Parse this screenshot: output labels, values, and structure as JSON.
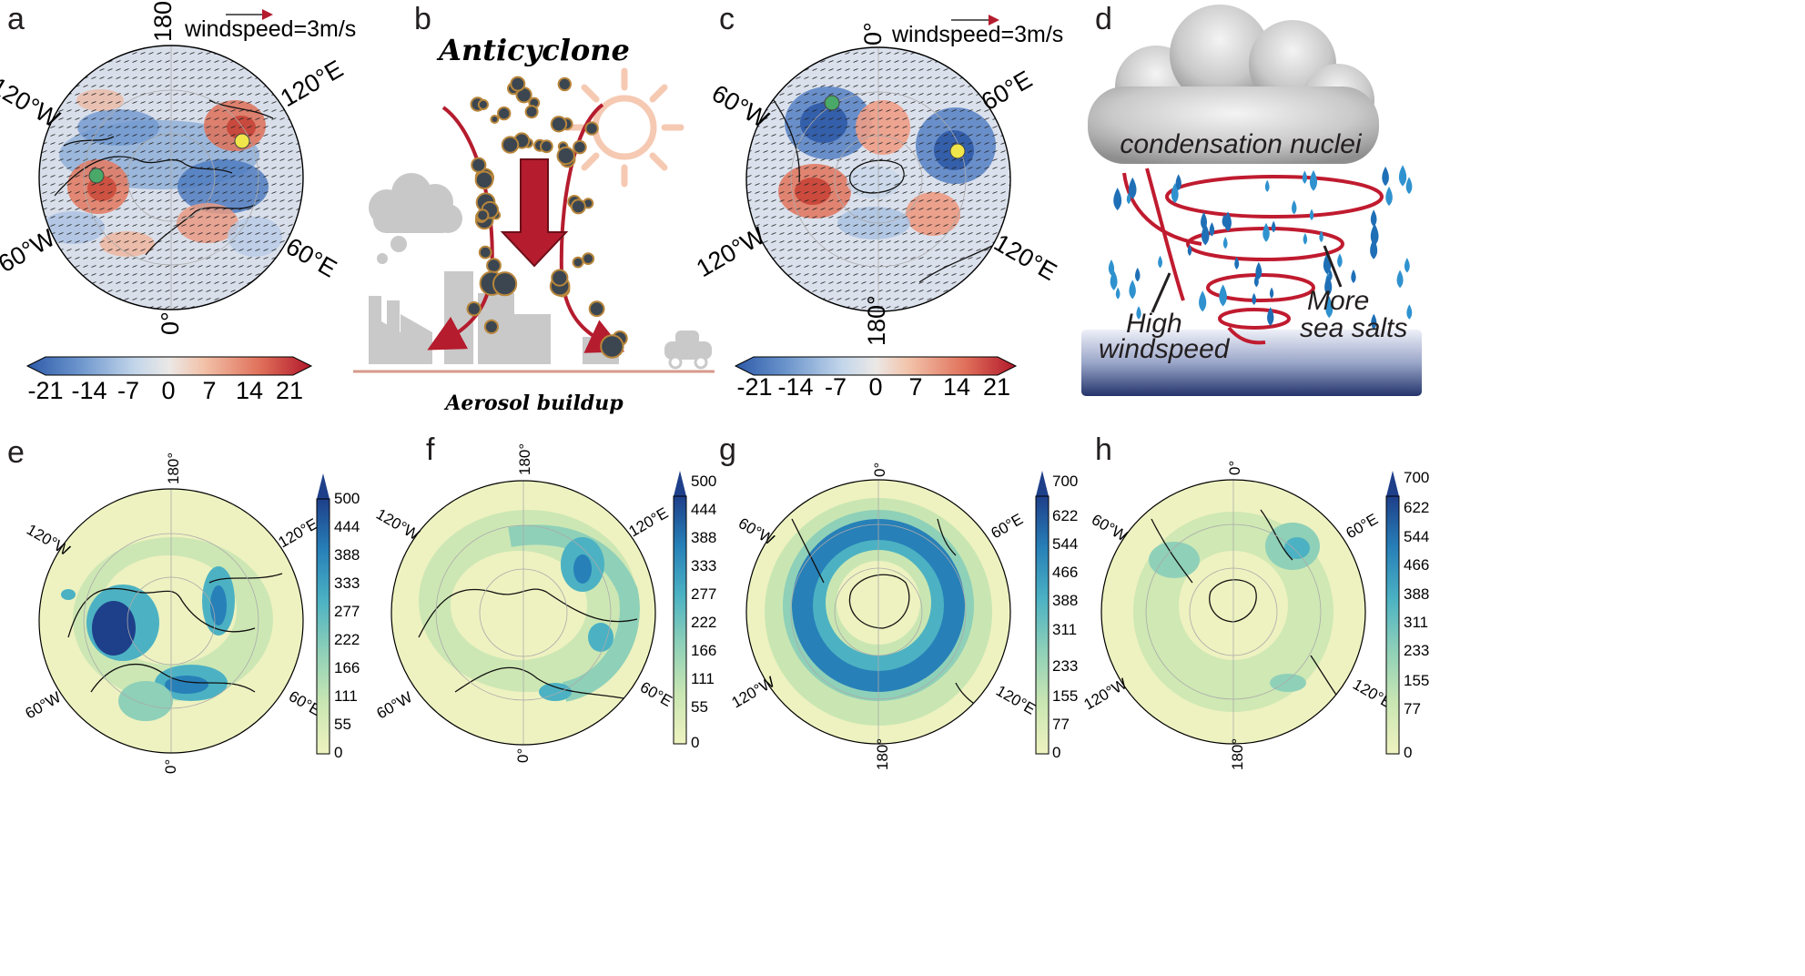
{
  "panels": {
    "a": {
      "label": "a",
      "windspeed": "windspeed=3m/s",
      "lon_top": "180°",
      "lon_bottom": "0°",
      "lon_ul": "120°W",
      "lon_ur": "120°E",
      "lon_ll": "60°W",
      "lon_lr": "60°E"
    },
    "b": {
      "label": "b",
      "title": "Anticyclone",
      "caption": "Aerosol buildup"
    },
    "c": {
      "label": "c",
      "windspeed": "windspeed=3m/s",
      "lon_top": "0°",
      "lon_bottom": "180°",
      "lon_ul": "60°W",
      "lon_ur": "60°E",
      "lon_ll": "120°W",
      "lon_lr": "120°E"
    },
    "d": {
      "label": "d",
      "cloud_text": "condensation nuclei",
      "high1": "High",
      "high2": "windspeed",
      "more1": "More",
      "more2": "sea salts"
    },
    "e": {
      "label": "e",
      "lon_top": "180°",
      "lon_bottom": "0°",
      "lon_ul": "120°W",
      "lon_ur": "120°E",
      "lon_ll": "60°W",
      "lon_lr": "60°E"
    },
    "f": {
      "label": "f",
      "lon_top": "180°",
      "lon_bottom": "0°",
      "lon_ul": "120°W",
      "lon_ur": "120°E",
      "lon_ll": "60°W",
      "lon_lr": "60°E"
    },
    "g": {
      "label": "g",
      "lon_top": "0°",
      "lon_bottom": "180°",
      "lon_ul": "60°W",
      "lon_ur": "60°E",
      "lon_ll": "120°W",
      "lon_lr": "120°E"
    },
    "h": {
      "label": "h",
      "lon_top": "0°",
      "lon_bottom": "180°",
      "lon_ul": "60°W",
      "lon_ur": "60°E",
      "lon_ll": "120°W",
      "lon_lr": "120°E"
    }
  },
  "colorbar_anomaly": {
    "ticks": [
      "-21",
      "-14",
      "-7",
      "0",
      "7",
      "14",
      "21"
    ]
  },
  "colorbar_ef": {
    "ticks": [
      "500",
      "444",
      "388",
      "333",
      "277",
      "222",
      "166",
      "111",
      "55",
      "0"
    ]
  },
  "colorbar_gh": {
    "ticks": [
      "700",
      "622",
      "544",
      "466",
      "388",
      "311",
      "233",
      "155",
      "77",
      "0"
    ]
  },
  "colors": {
    "red": "#b2182b",
    "blue": "#2166ac",
    "navy": "#1f3a6e",
    "ylgn_low": "#eef2c0",
    "arrow_red": "#b51c2e"
  }
}
